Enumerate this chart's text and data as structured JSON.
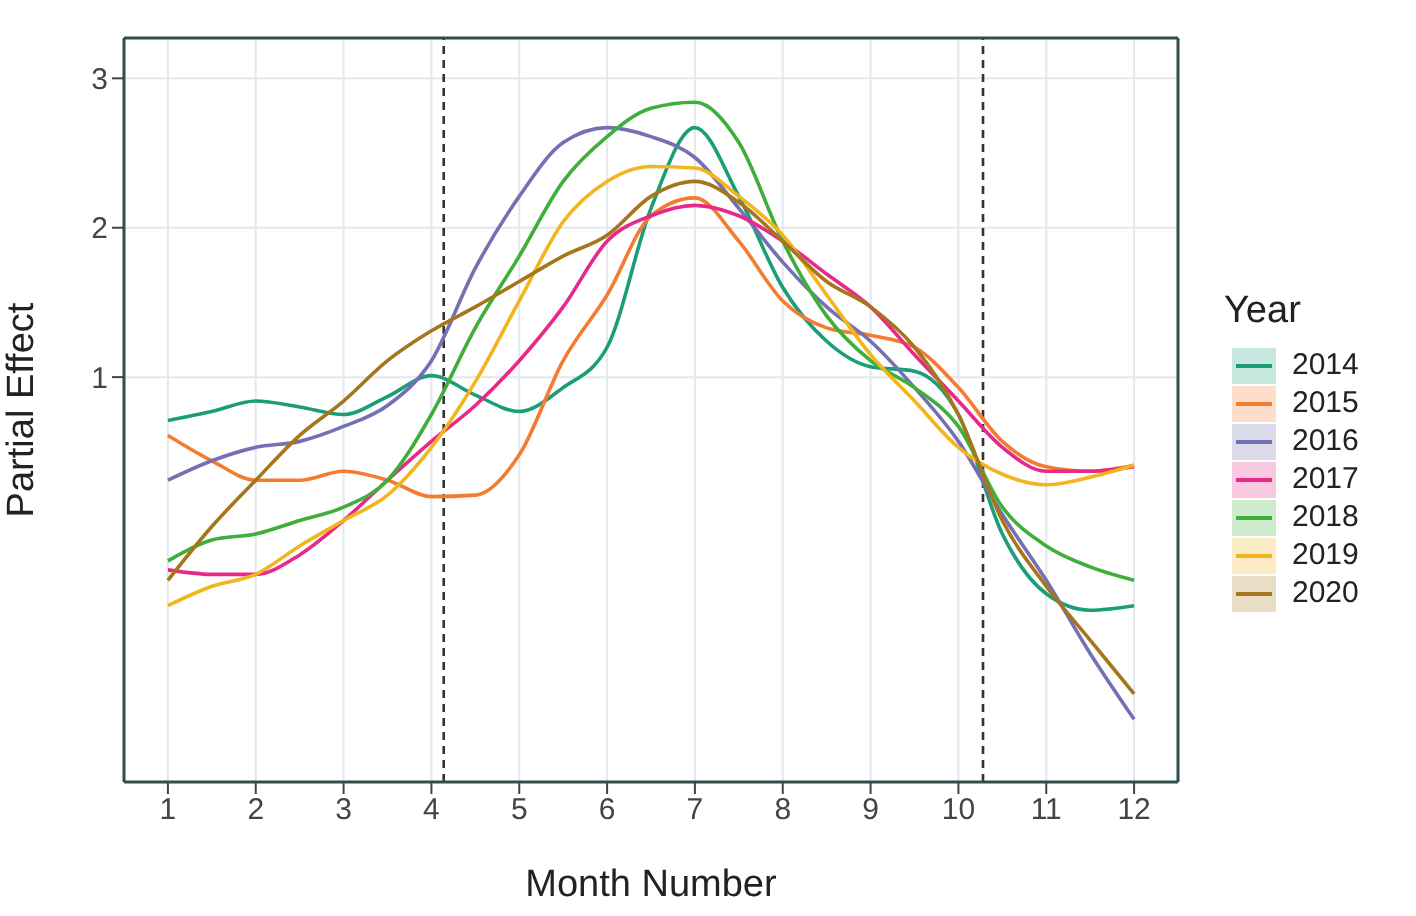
{
  "chart_data": {
    "type": "line",
    "xlabel": "Month Number",
    "ylabel": "Partial Effect",
    "legend_title": "Year",
    "legend": "right",
    "grid": true,
    "marker": "none",
    "line_style": "solid",
    "x": [
      1,
      1.5,
      2,
      2.5,
      3,
      3.5,
      4,
      4.5,
      5,
      5.5,
      6,
      6.5,
      7,
      7.5,
      8,
      8.5,
      9,
      9.5,
      10,
      10.5,
      11,
      11.5,
      12
    ],
    "xlim": [
      0.5,
      12.5
    ],
    "xticks": [
      1,
      2,
      3,
      4,
      5,
      6,
      7,
      8,
      9,
      10,
      11,
      12
    ],
    "ylim": [
      -1.71,
      3.27
    ],
    "yticks": [
      1,
      2,
      3
    ],
    "ref_lines": [
      {
        "axis": "x",
        "value": 4.14,
        "color": "#333333",
        "line_style": "dashed"
      },
      {
        "axis": "x",
        "value": 10.28,
        "color": "#333333",
        "line_style": "dashed"
      }
    ],
    "series": [
      {
        "name": "2014",
        "color": "#1b9e77",
        "values": [
          0.71,
          0.77,
          0.84,
          0.8,
          0.75,
          0.87,
          1.01,
          0.88,
          0.77,
          0.93,
          1.2,
          2.13,
          2.67,
          2.21,
          1.6,
          1.24,
          1.07,
          1.04,
          0.75,
          -0.05,
          -0.45,
          -0.56,
          -0.53
        ]
      },
      {
        "name": "2015",
        "color": "#f47b30",
        "values": [
          0.61,
          0.44,
          0.31,
          0.31,
          0.37,
          0.31,
          0.2,
          0.21,
          0.48,
          1.11,
          1.55,
          2.08,
          2.2,
          1.91,
          1.51,
          1.33,
          1.28,
          1.2,
          0.93,
          0.57,
          0.4,
          0.37,
          0.41
        ]
      },
      {
        "name": "2016",
        "color": "#7570b3",
        "values": [
          0.31,
          0.44,
          0.53,
          0.57,
          0.67,
          0.81,
          1.11,
          1.73,
          2.21,
          2.57,
          2.67,
          2.61,
          2.47,
          2.13,
          1.77,
          1.47,
          1.24,
          0.93,
          0.57,
          0.08,
          -0.36,
          -0.85,
          -1.29
        ]
      },
      {
        "name": "2017",
        "color": "#e7298a",
        "values": [
          -0.29,
          -0.32,
          -0.32,
          -0.19,
          0.04,
          0.31,
          0.57,
          0.81,
          1.11,
          1.47,
          1.91,
          2.08,
          2.15,
          2.08,
          1.91,
          1.69,
          1.47,
          1.15,
          0.84,
          0.53,
          0.37,
          0.37,
          0.4
        ]
      },
      {
        "name": "2018",
        "color": "#3fae3a",
        "values": [
          -0.23,
          -0.09,
          -0.05,
          0.04,
          0.13,
          0.31,
          0.75,
          1.33,
          1.81,
          2.31,
          2.61,
          2.8,
          2.84,
          2.57,
          1.91,
          1.41,
          1.11,
          0.93,
          0.67,
          0.13,
          -0.13,
          -0.27,
          -0.36
        ]
      },
      {
        "name": "2019",
        "color": "#f2b51d",
        "values": [
          -0.53,
          -0.4,
          -0.32,
          -0.13,
          0.04,
          0.21,
          0.53,
          0.97,
          1.51,
          2.04,
          2.31,
          2.41,
          2.4,
          2.21,
          1.95,
          1.55,
          1.15,
          0.84,
          0.53,
          0.35,
          0.28,
          0.33,
          0.41
        ]
      },
      {
        "name": "2020",
        "color": "#a6761d",
        "values": [
          -0.36,
          0,
          0.31,
          0.61,
          0.84,
          1.11,
          1.31,
          1.47,
          1.64,
          1.81,
          1.95,
          2.21,
          2.31,
          2.17,
          1.91,
          1.64,
          1.47,
          1.2,
          0.75,
          0.04,
          -0.4,
          -0.76,
          -1.12
        ]
      }
    ]
  }
}
